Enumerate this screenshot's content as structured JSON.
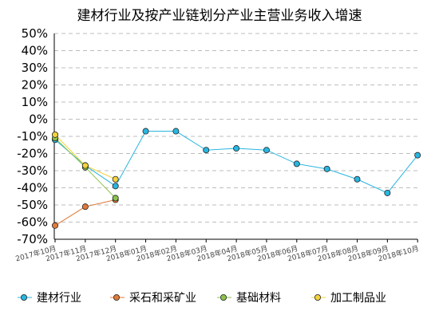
{
  "chart_data": {
    "type": "line",
    "title": "建材行业及按产业链划分产业主营业务收入增速",
    "xlabel": "",
    "ylabel": "",
    "categories": [
      "2017年10月",
      "2017年11月",
      "2017年12月",
      "2018年01月",
      "2018年02月",
      "2018年03月",
      "2018年04月",
      "2018年05月",
      "2018年06月",
      "2018年07月",
      "2018年08月",
      "2018年09月",
      "2018年10月"
    ],
    "ylim": [
      -70,
      50
    ],
    "yticks": [
      50,
      40,
      30,
      20,
      10,
      0,
      -10,
      -20,
      -30,
      -40,
      -50,
      -60,
      -70
    ],
    "ytick_labels": [
      "50%",
      "40%",
      "30%",
      "20%",
      "10%",
      "0%",
      "-10%",
      "-20%",
      "-30%",
      "-40%",
      "-50%",
      "-60%",
      "-70%"
    ],
    "grid": true,
    "legend_position": "bottom",
    "series": [
      {
        "name": "建材行业",
        "color": "#29b6e0",
        "marker_fill": "#29b6e0",
        "values": [
          -12,
          -27,
          -39,
          -7,
          -7,
          -18,
          -17,
          -18,
          -26,
          -29,
          -35,
          -43,
          -21
        ]
      },
      {
        "name": "采石和采矿业",
        "color": "#e07b39",
        "marker_fill": "#e07b39",
        "values": [
          -62,
          -51,
          -47,
          null,
          null,
          null,
          null,
          null,
          null,
          null,
          null,
          null,
          null
        ]
      },
      {
        "name": "基础材料",
        "color": "#8bc34a",
        "marker_fill": "#8bc34a",
        "values": [
          -11,
          -28,
          -46,
          null,
          null,
          null,
          null,
          null,
          null,
          null,
          null,
          null,
          null
        ]
      },
      {
        "name": "加工制品业",
        "color": "#f2d33b",
        "marker_fill": "#f2d33b",
        "values": [
          -9,
          -27,
          -35,
          null,
          null,
          null,
          null,
          null,
          null,
          null,
          null,
          null,
          null
        ]
      }
    ]
  }
}
